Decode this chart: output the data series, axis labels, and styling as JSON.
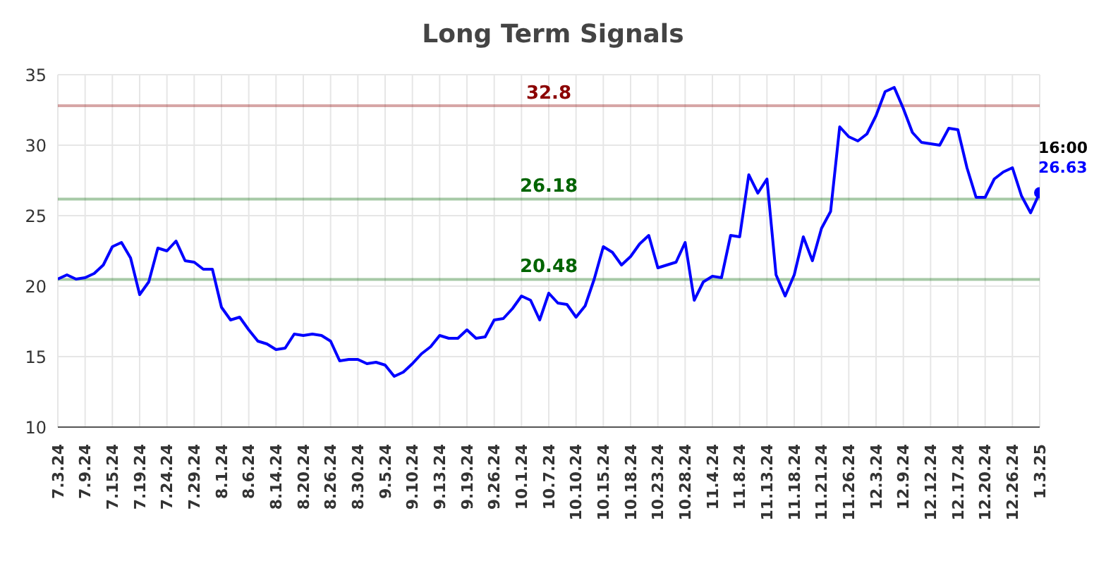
{
  "chart_data": {
    "type": "line",
    "title": "Long Term Signals",
    "categories": [
      "7.3.24",
      null,
      null,
      "7.9.24",
      null,
      null,
      "7.15.24",
      null,
      null,
      "7.19.24",
      null,
      null,
      "7.24.24",
      null,
      null,
      "7.29.24",
      null,
      null,
      "8.1.24",
      null,
      null,
      "8.6.24",
      null,
      null,
      "8.14.24",
      null,
      null,
      "8.20.24",
      null,
      null,
      "8.26.24",
      null,
      null,
      "8.30.24",
      null,
      null,
      "9.5.24",
      null,
      null,
      "9.10.24",
      null,
      null,
      "9.13.24",
      null,
      null,
      "9.19.24",
      null,
      null,
      "9.26.24",
      null,
      null,
      "10.1.24",
      null,
      null,
      "10.7.24",
      null,
      null,
      "10.10.24",
      null,
      null,
      "10.15.24",
      null,
      null,
      "10.18.24",
      null,
      null,
      "10.23.24",
      null,
      null,
      "10.28.24",
      null,
      null,
      "11.4.24",
      null,
      null,
      "11.8.24",
      null,
      null,
      "11.13.24",
      null,
      null,
      "11.18.24",
      null,
      null,
      "11.21.24",
      null,
      null,
      "11.26.24",
      null,
      null,
      "12.3.24",
      null,
      null,
      "12.9.24",
      null,
      null,
      "12.12.24",
      null,
      null,
      "12.17.24",
      null,
      null,
      "12.20.24",
      null,
      null,
      "12.26.24",
      null,
      null,
      "1.3.25"
    ],
    "series": [
      {
        "color": "#0000ff",
        "values": [
          20.5,
          20.8,
          20.5,
          20.6,
          20.9,
          21.5,
          22.8,
          23.1,
          22,
          19.4,
          20.3,
          22.7,
          22.5,
          23.2,
          21.8,
          21.7,
          21.2,
          21.2,
          18.5,
          17.6,
          17.8,
          16.9,
          16.1,
          15.9,
          15.5,
          15.6,
          16.6,
          16.5,
          16.6,
          16.5,
          16.1,
          14.7,
          14.8,
          14.8,
          14.5,
          14.6,
          14.4,
          13.6,
          13.9,
          14.5,
          15.2,
          15.7,
          16.5,
          16.3,
          16.3,
          16.9,
          16.3,
          16.4,
          17.6,
          17.7,
          18.4,
          19.3,
          19.0,
          17.6,
          19.5,
          18.8,
          18.7,
          17.8,
          18.6,
          20.5,
          22.8,
          22.4,
          21.5,
          22.1,
          23.0,
          23.6,
          21.3,
          21.5,
          21.7,
          23.1,
          19.0,
          20.3,
          20.7,
          20.6,
          23.6,
          23.5,
          27.9,
          26.6,
          27.6,
          20.8,
          19.3,
          20.8,
          23.5,
          21.8,
          24.1,
          25.3,
          31.3,
          30.6,
          30.3,
          30.8,
          32.1,
          33.8,
          34.1,
          32.6,
          30.9,
          30.2,
          30.1,
          30.0,
          31.2,
          31.1,
          28.4,
          26.3,
          26.3,
          27.6,
          28.1,
          28.4,
          26.4,
          25.2,
          26.63
        ],
        "value_labels": [
          null,
          null,
          null,
          null,
          null,
          null,
          null,
          null,
          null,
          null,
          null,
          null,
          null,
          null,
          null,
          null,
          null,
          null,
          null,
          null,
          null,
          null,
          null,
          null,
          null,
          null,
          null,
          null,
          null,
          null,
          null,
          null,
          null,
          null,
          null,
          null,
          null,
          null,
          null,
          null,
          null,
          null,
          null,
          null,
          null,
          null,
          null,
          null,
          null,
          null,
          null,
          null,
          null,
          null,
          null,
          null,
          null,
          null,
          null,
          null,
          null,
          null,
          null,
          null,
          null,
          null,
          null,
          null,
          null,
          null,
          null,
          null,
          null,
          null,
          null,
          null,
          null,
          null,
          null,
          null,
          null,
          null,
          null,
          null,
          null,
          null,
          null,
          null,
          null,
          null,
          null,
          null,
          null,
          null,
          null,
          null,
          null,
          null,
          null,
          null,
          null,
          null,
          null,
          null,
          null,
          null,
          null,
          null,
          "26.63"
        ]
      }
    ],
    "ylim": [
      10,
      35
    ],
    "yticks": [
      10,
      15,
      20,
      25,
      30,
      35
    ],
    "grid": true,
    "ref_lines": [
      {
        "axis": "y",
        "value": 32.8,
        "label": "32.8",
        "color": "#8b0000"
      },
      {
        "axis": "y",
        "value": 26.18,
        "label": "26.18",
        "color": "#006400"
      },
      {
        "axis": "y",
        "value": 20.48,
        "label": "20.48",
        "color": "#006400"
      }
    ],
    "annotations": [
      {
        "text": "16:00",
        "x": "1.3.25",
        "y": 26.63
      }
    ]
  }
}
